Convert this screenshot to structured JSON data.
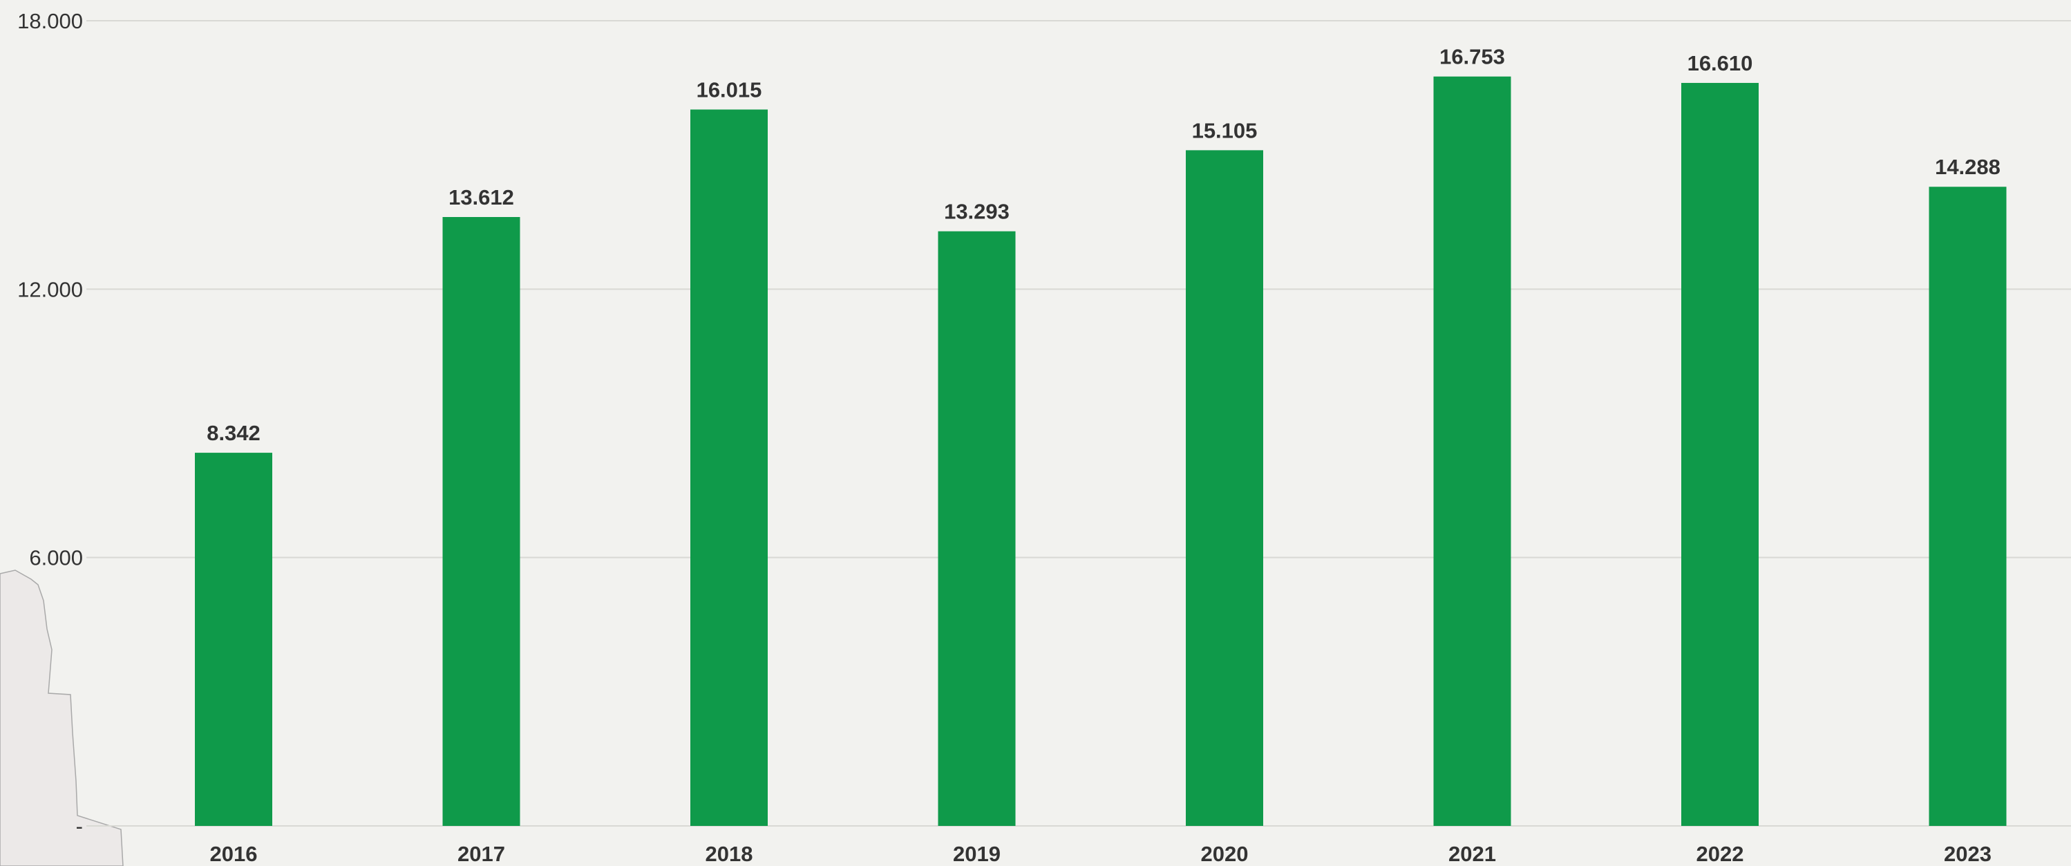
{
  "colors": {
    "background": "#f2f2ef",
    "bar": "#0f9a4a",
    "grid": "#d9d9d4",
    "text": "#333333",
    "map_fill": "#ece9e8",
    "map_stroke": "#a9a9a9"
  },
  "chart_data": {
    "type": "bar",
    "categories": [
      "2016",
      "2017",
      "2018",
      "2019",
      "2020",
      "2021",
      "2022",
      "2023"
    ],
    "values": [
      8342,
      13612,
      16015,
      13293,
      15105,
      16753,
      16610,
      14288
    ],
    "value_labels": [
      "8.342",
      "13.612",
      "16.015",
      "13.293",
      "15.105",
      "16.753",
      "16.610",
      "14.288"
    ],
    "ylim": [
      0,
      18000
    ],
    "y_ticks": [
      0,
      6000,
      12000,
      18000
    ],
    "y_tick_labels": [
      "-",
      "6.000",
      "12.000",
      "18.000"
    ],
    "grid": true,
    "title": "",
    "xlabel": "",
    "ylabel": ""
  }
}
